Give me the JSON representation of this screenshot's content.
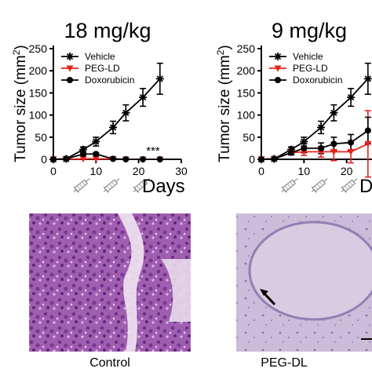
{
  "colors": {
    "vehicle": "#000000",
    "peg_ld": "#e8221d",
    "doxorubicin": "#000000",
    "tissue_control": "#9a4ea6",
    "tissue_peg": "#c6b6d6"
  },
  "chart_data": [
    {
      "type": "line",
      "title": "18 mg/kg",
      "ylabel": "Tumor size (mm²)",
      "xlabel": "Days",
      "ylim": [
        0,
        250
      ],
      "xlim": [
        0,
        30
      ],
      "xticks": [
        0,
        10,
        20,
        30
      ],
      "yticks": [
        0,
        50,
        100,
        150,
        200,
        250
      ],
      "legend_position": "top-left",
      "annotation": "***",
      "series": [
        {
          "name": "Vehicle",
          "marker": "asterisk",
          "color": "#000000",
          "x": [
            0,
            3,
            7,
            10,
            14,
            17,
            21,
            25
          ],
          "y": [
            0,
            1,
            22,
            40,
            72,
            105,
            140,
            182
          ],
          "err": [
            0,
            0,
            6,
            10,
            14,
            18,
            20,
            35
          ]
        },
        {
          "name": "PEG-LD",
          "marker": "triangle-down",
          "color": "#e8221d",
          "x": [
            0,
            3,
            7,
            10,
            14,
            17,
            21,
            25
          ],
          "y": [
            0,
            0,
            1,
            1,
            1,
            0,
            0,
            0
          ],
          "err": [
            0,
            0,
            0,
            0,
            0,
            0,
            0,
            0
          ]
        },
        {
          "name": "Doxorubicin",
          "marker": "circle",
          "color": "#000000",
          "x": [
            0,
            3,
            7,
            10,
            14,
            17,
            21,
            25
          ],
          "y": [
            0,
            1,
            12,
            12,
            1,
            0,
            0,
            0
          ],
          "err": [
            0,
            0,
            5,
            3,
            0,
            0,
            0,
            0
          ]
        }
      ]
    },
    {
      "type": "line",
      "title": "9 mg/kg",
      "ylabel": "Tumor size (mm²)",
      "xlabel": "Days",
      "ylim": [
        0,
        250
      ],
      "xlim": [
        0,
        30
      ],
      "xticks": [
        0,
        10,
        20
      ],
      "yticks": [
        0,
        50,
        100,
        150,
        200,
        250
      ],
      "legend_position": "top-left",
      "series": [
        {
          "name": "Vehicle",
          "marker": "asterisk",
          "color": "#000000",
          "x": [
            0,
            3,
            7,
            10,
            14,
            17,
            21,
            25
          ],
          "y": [
            0,
            1,
            22,
            40,
            72,
            105,
            140,
            182
          ],
          "err": [
            0,
            0,
            6,
            10,
            14,
            18,
            20,
            35
          ]
        },
        {
          "name": "PEG-LD",
          "marker": "triangle-down",
          "color": "#e8221d",
          "x": [
            0,
            3,
            7,
            10,
            14,
            17,
            21,
            25
          ],
          "y": [
            0,
            1,
            15,
            17,
            17,
            17,
            17,
            35
          ],
          "err": [
            0,
            0,
            5,
            8,
            12,
            20,
            25,
            75
          ]
        },
        {
          "name": "Doxorubicin",
          "marker": "circle",
          "color": "#000000",
          "x": [
            0,
            3,
            7,
            10,
            14,
            17,
            21,
            25
          ],
          "y": [
            0,
            1,
            15,
            25,
            25,
            35,
            38,
            65
          ],
          "err": [
            0,
            0,
            5,
            10,
            12,
            15,
            18,
            30
          ]
        }
      ]
    }
  ],
  "images": [
    {
      "caption": "Control"
    },
    {
      "caption": "PEG-DL"
    }
  ]
}
